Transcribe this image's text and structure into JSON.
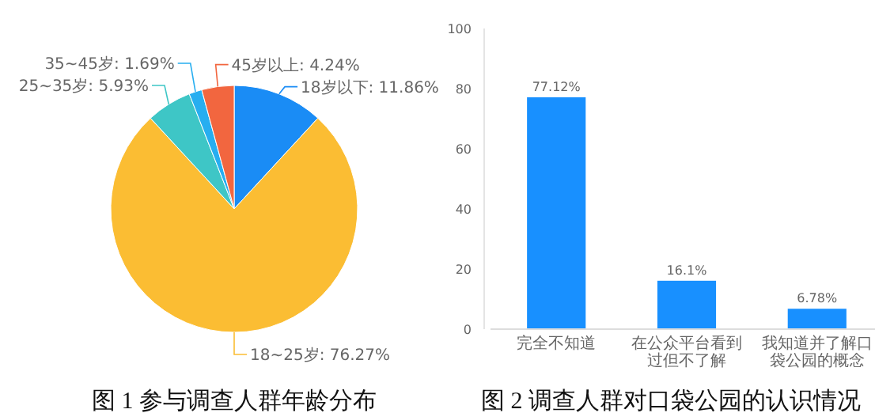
{
  "chart_data": [
    {
      "type": "pie",
      "title": "图 1 参与调查人群年龄分布",
      "categories": [
        "18岁以下",
        "18~25岁",
        "25~35岁",
        "35~45岁",
        "45岁以上"
      ],
      "values": [
        11.86,
        76.27,
        5.93,
        1.69,
        4.24
      ],
      "value_labels": [
        "11.86%",
        "76.27%",
        "5.93%",
        "1.69%",
        "4.24%"
      ],
      "colors": [
        "#1a8cf5",
        "#fbbd33",
        "#3ec6c6",
        "#27aef0",
        "#f2663f"
      ]
    },
    {
      "type": "bar",
      "title": "图 2 调查人群对口袋公园的认识情况",
      "categories": [
        "完全不知道",
        "在公众平台看到过但不了解",
        "我知道并了解口袋公园的概念"
      ],
      "values": [
        77.12,
        16.1,
        6.78
      ],
      "value_labels": [
        "77.12%",
        "16.1%",
        "6.78%"
      ],
      "color": "#1890ff",
      "ylim": [
        0,
        100
      ],
      "yticks": [
        0,
        20,
        40,
        60,
        80,
        100
      ],
      "grid": false
    }
  ]
}
